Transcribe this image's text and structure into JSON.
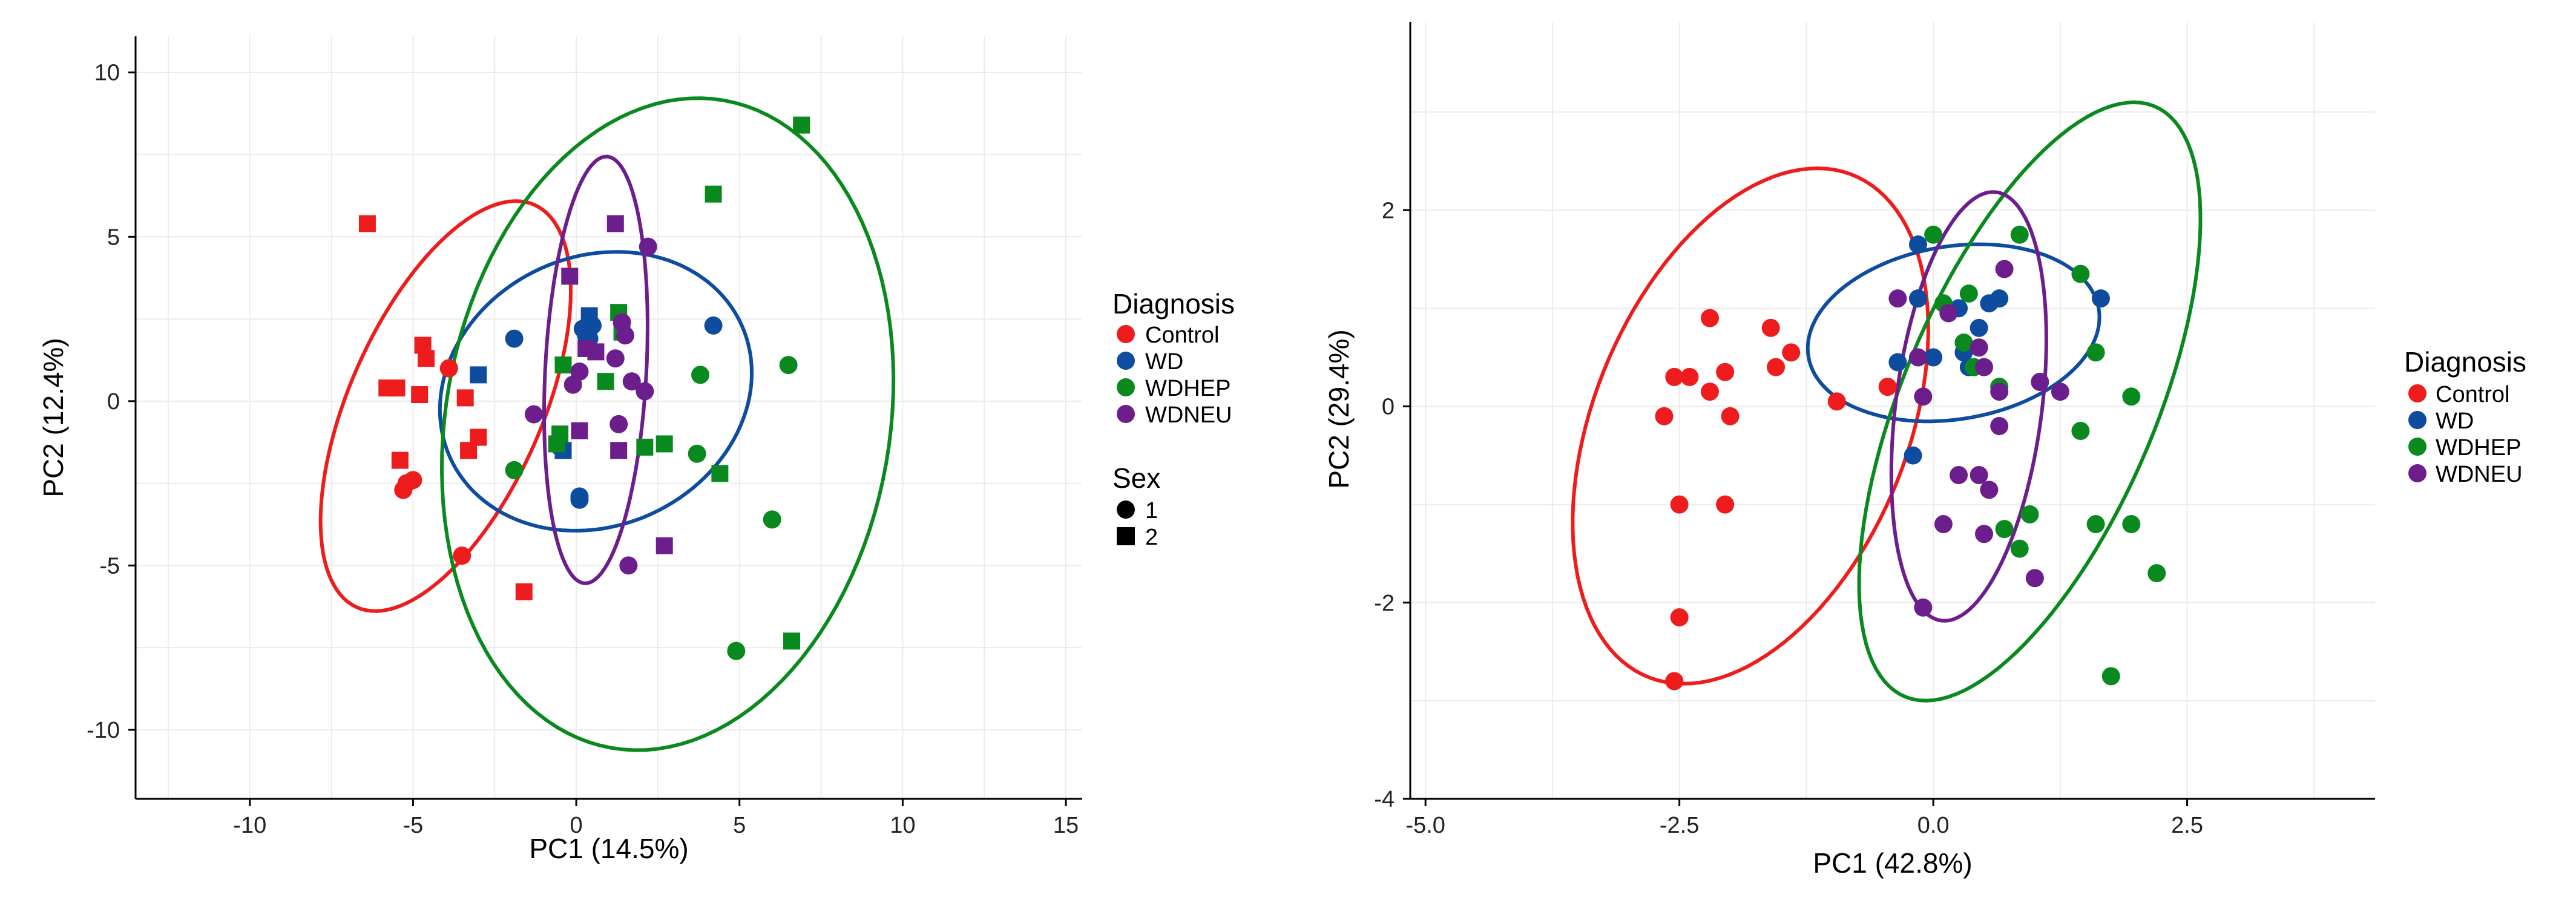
{
  "colors": {
    "Control": "#ee1c1c",
    "WD": "#0d4c9e",
    "WDHEP": "#0a8a1e",
    "WDNEU": "#6c1e8c",
    "grid": "#ececec",
    "axis": "#000000"
  },
  "chart_data": [
    {
      "type": "scatter",
      "title": "",
      "xlabel": "PC1 (14.5%)",
      "ylabel": "PC2 (12.4%)",
      "xlim": [
        -13.5,
        15.5
      ],
      "ylim": [
        -12.1,
        11.1
      ],
      "xticks": [
        -10,
        -5,
        0,
        5,
        10,
        15
      ],
      "xtick_labels": [
        "-10",
        "-5",
        "0",
        "5",
        "10",
        "15"
      ],
      "yticks": [
        -10,
        -5,
        0,
        5,
        10
      ],
      "ytick_labels": [
        "-10",
        "-5",
        "0",
        "5",
        "10"
      ],
      "legend": {
        "position": "right",
        "color_title": "Diagnosis",
        "color_entries": [
          "Control",
          "WD",
          "WDHEP",
          "WDNEU"
        ],
        "shape_title": "Sex",
        "shape_entries": [
          {
            "label": "1",
            "shape": "circle"
          },
          {
            "label": "2",
            "shape": "square"
          }
        ]
      },
      "ellipses": [
        {
          "group": "Control",
          "cx": -4.0,
          "cy": -0.15,
          "rx": 6.7,
          "ry": 2.95,
          "angle": 66
        },
        {
          "group": "WD",
          "cx": 0.6,
          "cy": 0.3,
          "rx": 4.9,
          "ry": 4.1,
          "angle": 24
        },
        {
          "group": "WDHEP",
          "cx": 2.8,
          "cy": -0.7,
          "rx": 10.0,
          "ry": 6.8,
          "angle": 80
        },
        {
          "group": "WDNEU",
          "cx": 0.6,
          "cy": 0.95,
          "rx": 6.5,
          "ry": 1.55,
          "angle": 87
        }
      ],
      "series": [
        {
          "name": "Control",
          "points": [
            [
              -6.4,
              5.4,
              2
            ],
            [
              -4.7,
              1.7,
              2
            ],
            [
              -4.6,
              1.3,
              2
            ],
            [
              -3.9,
              1.0,
              1
            ],
            [
              -5.8,
              0.4,
              2
            ],
            [
              -5.5,
              0.4,
              2
            ],
            [
              -4.8,
              0.2,
              2
            ],
            [
              -3.4,
              0.1,
              2
            ],
            [
              -3.0,
              -1.1,
              2
            ],
            [
              -3.3,
              -1.5,
              2
            ],
            [
              -5.4,
              -1.8,
              2
            ],
            [
              -5.0,
              -2.4,
              1
            ],
            [
              -5.2,
              -2.5,
              1
            ],
            [
              -5.3,
              -2.7,
              1
            ],
            [
              -3.5,
              -4.7,
              1
            ],
            [
              -1.6,
              -5.8,
              2
            ]
          ]
        },
        {
          "name": "WD",
          "points": [
            [
              -3.0,
              0.8,
              2
            ],
            [
              -1.9,
              1.9,
              1
            ],
            [
              0.4,
              2.6,
              2
            ],
            [
              0.5,
              2.3,
              1
            ],
            [
              0.2,
              2.2,
              1
            ],
            [
              0.3,
              2.0,
              1
            ],
            [
              4.2,
              2.3,
              1
            ],
            [
              -0.5,
              -1.4,
              1
            ],
            [
              -0.4,
              -1.5,
              2
            ],
            [
              0.1,
              -2.9,
              1
            ],
            [
              0.1,
              -3.0,
              1
            ],
            [
              0.4,
              1.9,
              1
            ]
          ]
        },
        {
          "name": "WDHEP",
          "points": [
            [
              6.9,
              8.4,
              2
            ],
            [
              4.2,
              6.3,
              2
            ],
            [
              1.3,
              2.7,
              2
            ],
            [
              1.4,
              2.1,
              2
            ],
            [
              -0.4,
              1.1,
              2
            ],
            [
              3.8,
              0.8,
              1
            ],
            [
              6.5,
              1.1,
              1
            ],
            [
              0.9,
              0.6,
              2
            ],
            [
              -0.5,
              -1.0,
              2
            ],
            [
              -0.6,
              -1.3,
              2
            ],
            [
              2.1,
              -1.4,
              2
            ],
            [
              2.7,
              -1.3,
              2
            ],
            [
              3.7,
              -1.6,
              1
            ],
            [
              4.4,
              -2.2,
              2
            ],
            [
              -1.9,
              -2.1,
              1
            ],
            [
              6.0,
              -3.6,
              1
            ],
            [
              6.6,
              -7.3,
              2
            ],
            [
              4.9,
              -7.6,
              1
            ]
          ]
        },
        {
          "name": "WDNEU",
          "points": [
            [
              1.2,
              5.4,
              2
            ],
            [
              2.2,
              4.7,
              1
            ],
            [
              -0.2,
              3.8,
              2
            ],
            [
              1.4,
              2.4,
              1
            ],
            [
              1.5,
              2.0,
              1
            ],
            [
              0.3,
              1.6,
              2
            ],
            [
              0.6,
              1.5,
              2
            ],
            [
              1.2,
              1.3,
              1
            ],
            [
              0.1,
              0.9,
              1
            ],
            [
              -0.1,
              0.5,
              1
            ],
            [
              1.7,
              0.6,
              1
            ],
            [
              2.1,
              0.3,
              1
            ],
            [
              -1.3,
              -0.4,
              1
            ],
            [
              0.1,
              -0.9,
              2
            ],
            [
              1.3,
              -0.7,
              1
            ],
            [
              1.3,
              -1.5,
              2
            ],
            [
              2.7,
              -4.4,
              2
            ],
            [
              1.6,
              -5.0,
              1
            ]
          ]
        }
      ]
    },
    {
      "type": "scatter",
      "title": "",
      "xlabel": "PC1 (42.8%)",
      "ylabel": "PC2 (29.4%)",
      "xlim": [
        -5.15,
        4.35
      ],
      "ylim": [
        -4.0,
        3.92
      ],
      "xticks": [
        -5.0,
        -2.5,
        0.0,
        2.5
      ],
      "xtick_labels": [
        "-5.0",
        "-2.5",
        "0.0",
        "2.5"
      ],
      "yticks": [
        -4,
        -2,
        0,
        2
      ],
      "ytick_labels": [
        "-4",
        "-2",
        "0",
        "2"
      ],
      "legend": {
        "position": "right",
        "color_title": "Diagnosis",
        "color_entries": [
          "Control",
          "WD",
          "WDHEP",
          "WDNEU"
        ]
      },
      "ellipses": [
        {
          "group": "Control",
          "cx": -1.8,
          "cy": -0.2,
          "rx": 2.75,
          "ry": 1.55,
          "angle": 69
        },
        {
          "group": "WD",
          "cx": 0.2,
          "cy": 0.75,
          "rx": 1.45,
          "ry": 0.88,
          "angle": 10
        },
        {
          "group": "WDHEP",
          "cx": 0.95,
          "cy": 0.05,
          "rx": 3.25,
          "ry": 1.25,
          "angle": 68
        },
        {
          "group": "WDNEU",
          "cx": 0.35,
          "cy": 0.0,
          "rx": 2.2,
          "ry": 0.72,
          "angle": 83
        }
      ],
      "series": [
        {
          "name": "Control",
          "points": [
            [
              -2.2,
              0.9,
              1
            ],
            [
              -1.6,
              0.8,
              1
            ],
            [
              -1.4,
              0.55,
              1
            ],
            [
              -1.55,
              0.4,
              1
            ],
            [
              -2.05,
              0.35,
              1
            ],
            [
              -2.55,
              0.3,
              1
            ],
            [
              -2.4,
              0.3,
              1
            ],
            [
              -2.2,
              0.15,
              1
            ],
            [
              -2.65,
              -0.1,
              1
            ],
            [
              -2.0,
              -0.1,
              1
            ],
            [
              -0.95,
              0.05,
              1
            ],
            [
              -0.45,
              0.2,
              1
            ],
            [
              -2.5,
              -1.0,
              1
            ],
            [
              -2.05,
              -1.0,
              1
            ],
            [
              -2.5,
              -2.15,
              1
            ],
            [
              -2.55,
              -2.8,
              1
            ]
          ]
        },
        {
          "name": "WD",
          "points": [
            [
              -0.15,
              1.65,
              1
            ],
            [
              -0.15,
              1.1,
              1
            ],
            [
              0.25,
              1.0,
              1
            ],
            [
              0.45,
              0.8,
              1
            ],
            [
              0.55,
              1.05,
              1
            ],
            [
              0.65,
              1.1,
              1
            ],
            [
              1.65,
              1.1,
              1
            ],
            [
              -0.35,
              0.45,
              1
            ],
            [
              0.0,
              0.5,
              1
            ],
            [
              0.3,
              0.55,
              1
            ],
            [
              0.35,
              0.4,
              1
            ],
            [
              -0.2,
              -0.5,
              1
            ]
          ]
        },
        {
          "name": "WDHEP",
          "points": [
            [
              0.0,
              1.75,
              1
            ],
            [
              0.85,
              1.75,
              1
            ],
            [
              1.45,
              1.35,
              1
            ],
            [
              0.35,
              1.15,
              1
            ],
            [
              0.1,
              1.05,
              1
            ],
            [
              0.3,
              0.65,
              1
            ],
            [
              1.6,
              0.55,
              1
            ],
            [
              0.4,
              0.4,
              1
            ],
            [
              0.65,
              0.2,
              1
            ],
            [
              1.95,
              0.1,
              1
            ],
            [
              1.45,
              -0.25,
              1
            ],
            [
              0.95,
              -1.1,
              1
            ],
            [
              0.7,
              -1.25,
              1
            ],
            [
              1.6,
              -1.2,
              1
            ],
            [
              1.95,
              -1.2,
              1
            ],
            [
              0.85,
              -1.45,
              1
            ],
            [
              2.2,
              -1.7,
              1
            ],
            [
              1.75,
              -2.75,
              1
            ]
          ]
        },
        {
          "name": "WDNEU",
          "points": [
            [
              0.7,
              1.4,
              1
            ],
            [
              -0.35,
              1.1,
              1
            ],
            [
              0.15,
              0.95,
              1
            ],
            [
              0.45,
              0.6,
              1
            ],
            [
              -0.15,
              0.5,
              1
            ],
            [
              0.5,
              0.4,
              1
            ],
            [
              -0.1,
              0.1,
              1
            ],
            [
              1.05,
              0.25,
              1
            ],
            [
              1.25,
              0.15,
              1
            ],
            [
              0.65,
              0.15,
              1
            ],
            [
              0.65,
              -0.2,
              1
            ],
            [
              0.25,
              -0.7,
              1
            ],
            [
              0.45,
              -0.7,
              1
            ],
            [
              0.55,
              -0.85,
              1
            ],
            [
              0.1,
              -1.2,
              1
            ],
            [
              0.5,
              -1.3,
              1
            ],
            [
              1.0,
              -1.75,
              1
            ],
            [
              -0.1,
              -2.05,
              1
            ]
          ]
        }
      ]
    }
  ]
}
